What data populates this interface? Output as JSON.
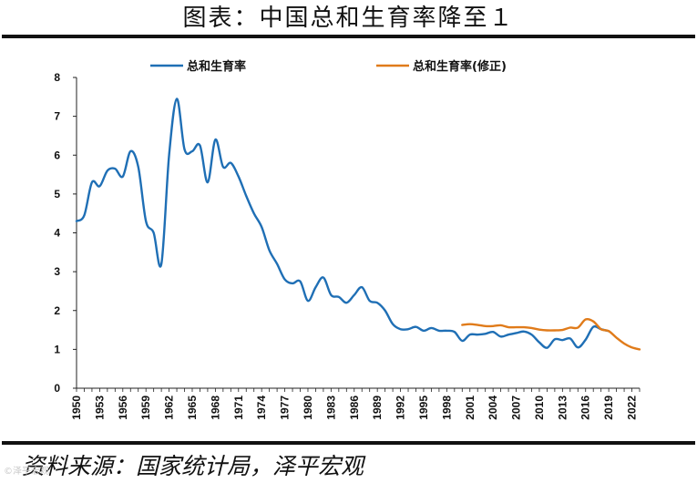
{
  "page": {
    "title": "图表：中国总和生育率降至１",
    "source": "资料来源：国家统计局，泽平宏观",
    "watermark": "©泽平宏观"
  },
  "chart_data": {
    "type": "line",
    "title": "图表：中国总和生育率降至１",
    "xlabel": "",
    "ylabel": "",
    "ylim": [
      0,
      8
    ],
    "xlim": [
      1950,
      2023
    ],
    "yticks": [
      "0",
      "1",
      "2",
      "3",
      "4",
      "5",
      "6",
      "7",
      "8"
    ],
    "xticks": [
      "1950",
      "1953",
      "1956",
      "1959",
      "1962",
      "1965",
      "1968",
      "1971",
      "1974",
      "1977",
      "1980",
      "1983",
      "1986",
      "1989",
      "1992",
      "1995",
      "1998",
      "2001",
      "2004",
      "2007",
      "2010",
      "2013",
      "2016",
      "2019",
      "2022"
    ],
    "grid": false,
    "legend": "top",
    "series": [
      {
        "name": "总和生育率",
        "color": "#1f6fb5",
        "points": [
          [
            1950,
            4.3
          ],
          [
            1951,
            4.45
          ],
          [
            1952,
            5.3
          ],
          [
            1953,
            5.2
          ],
          [
            1954,
            5.6
          ],
          [
            1955,
            5.65
          ],
          [
            1956,
            5.45
          ],
          [
            1957,
            6.1
          ],
          [
            1958,
            5.7
          ],
          [
            1959,
            4.3
          ],
          [
            1960,
            4.0
          ],
          [
            1961,
            3.2
          ],
          [
            1962,
            6.0
          ],
          [
            1963,
            7.45
          ],
          [
            1964,
            6.15
          ],
          [
            1965,
            6.1
          ],
          [
            1966,
            6.25
          ],
          [
            1967,
            5.3
          ],
          [
            1968,
            6.4
          ],
          [
            1969,
            5.7
          ],
          [
            1970,
            5.8
          ],
          [
            1971,
            5.45
          ],
          [
            1972,
            4.95
          ],
          [
            1973,
            4.5
          ],
          [
            1974,
            4.15
          ],
          [
            1975,
            3.55
          ],
          [
            1976,
            3.2
          ],
          [
            1977,
            2.8
          ],
          [
            1978,
            2.7
          ],
          [
            1979,
            2.75
          ],
          [
            1980,
            2.25
          ],
          [
            1981,
            2.6
          ],
          [
            1982,
            2.85
          ],
          [
            1983,
            2.4
          ],
          [
            1984,
            2.35
          ],
          [
            1985,
            2.2
          ],
          [
            1986,
            2.4
          ],
          [
            1987,
            2.6
          ],
          [
            1988,
            2.25
          ],
          [
            1989,
            2.2
          ],
          [
            1990,
            2.0
          ],
          [
            1991,
            1.65
          ],
          [
            1992,
            1.52
          ],
          [
            1993,
            1.52
          ],
          [
            1994,
            1.58
          ],
          [
            1995,
            1.48
          ],
          [
            1996,
            1.55
          ],
          [
            1997,
            1.48
          ],
          [
            1998,
            1.48
          ],
          [
            1999,
            1.45
          ],
          [
            2000,
            1.22
          ],
          [
            2001,
            1.38
          ],
          [
            2002,
            1.38
          ],
          [
            2003,
            1.4
          ],
          [
            2004,
            1.45
          ],
          [
            2005,
            1.33
          ],
          [
            2006,
            1.38
          ],
          [
            2007,
            1.42
          ],
          [
            2008,
            1.46
          ],
          [
            2009,
            1.38
          ],
          [
            2010,
            1.18
          ],
          [
            2011,
            1.04
          ],
          [
            2012,
            1.26
          ],
          [
            2013,
            1.24
          ],
          [
            2014,
            1.28
          ],
          [
            2015,
            1.05
          ],
          [
            2016,
            1.25
          ],
          [
            2017,
            1.58
          ],
          [
            2018,
            1.52
          ],
          [
            2019,
            1.47
          ]
        ]
      },
      {
        "name": "总和生育率(修正)",
        "color": "#e07b1a",
        "points": [
          [
            2000,
            1.63
          ],
          [
            2001,
            1.65
          ],
          [
            2002,
            1.63
          ],
          [
            2003,
            1.6
          ],
          [
            2004,
            1.6
          ],
          [
            2005,
            1.62
          ],
          [
            2006,
            1.57
          ],
          [
            2007,
            1.57
          ],
          [
            2008,
            1.57
          ],
          [
            2009,
            1.55
          ],
          [
            2010,
            1.51
          ],
          [
            2011,
            1.49
          ],
          [
            2012,
            1.49
          ],
          [
            2013,
            1.5
          ],
          [
            2014,
            1.56
          ],
          [
            2015,
            1.56
          ],
          [
            2016,
            1.77
          ],
          [
            2017,
            1.72
          ],
          [
            2018,
            1.52
          ],
          [
            2019,
            1.47
          ],
          [
            2020,
            1.3
          ],
          [
            2021,
            1.15
          ],
          [
            2022,
            1.05
          ],
          [
            2023,
            1.0
          ]
        ]
      }
    ]
  }
}
